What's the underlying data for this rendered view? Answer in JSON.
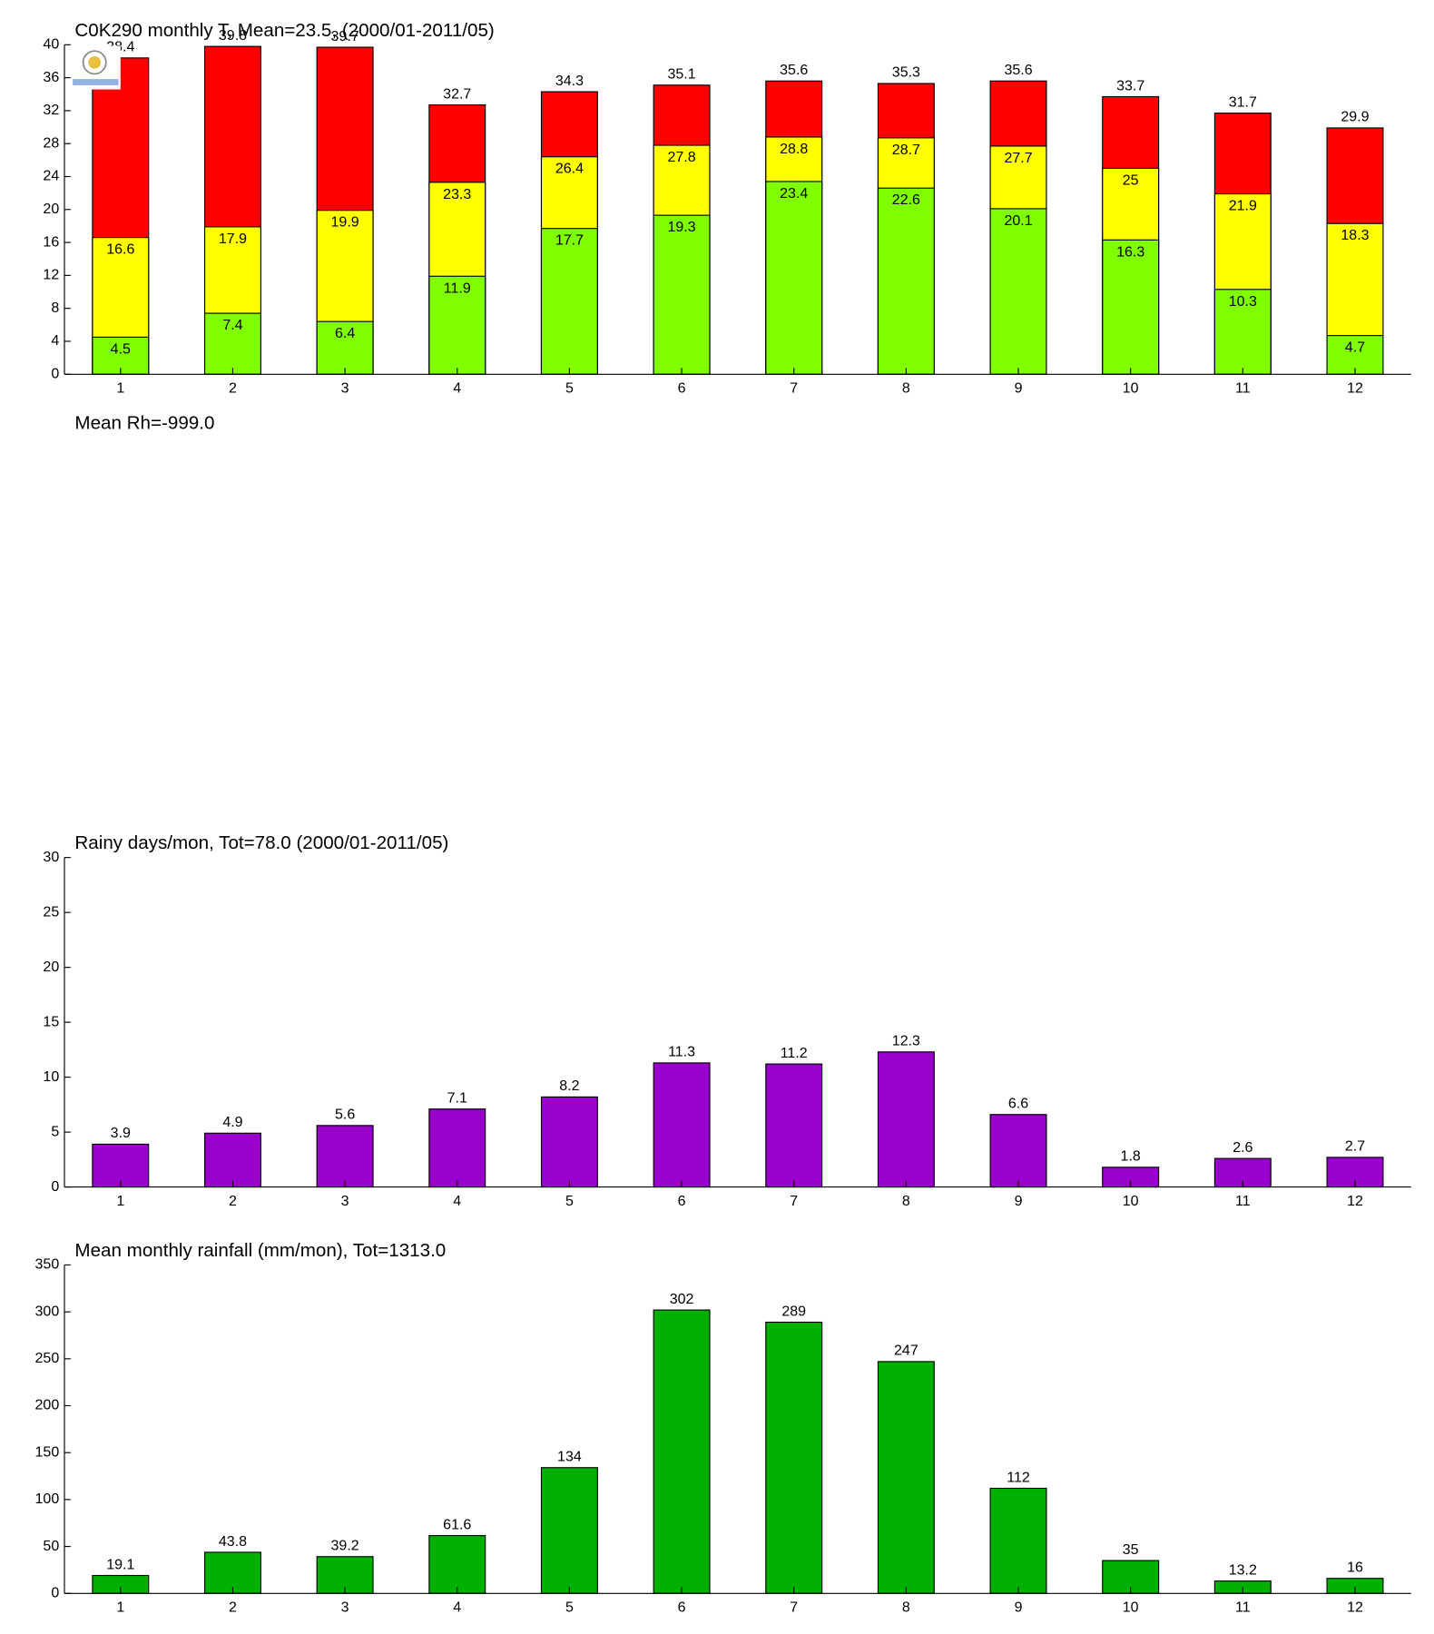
{
  "chart_data": [
    {
      "type": "bar",
      "overlay": true,
      "title": "C0K290 monthly T, Mean=23.5, (2000/01-2011/05)",
      "categories": [
        "1",
        "2",
        "3",
        "4",
        "5",
        "6",
        "7",
        "8",
        "9",
        "10",
        "11",
        "12"
      ],
      "series": [
        {
          "color": "#ff0000",
          "values": [
            38.4,
            39.8,
            39.7,
            32.7,
            34.3,
            35.1,
            35.6,
            35.3,
            35.6,
            33.7,
            31.7,
            29.9
          ]
        },
        {
          "color": "#ffff00",
          "values": [
            16.6,
            17.9,
            19.9,
            23.3,
            26.4,
            27.8,
            28.8,
            28.7,
            27.7,
            25,
            21.9,
            18.3
          ]
        },
        {
          "color": "#80ff00",
          "values": [
            4.5,
            7.4,
            6.4,
            11.9,
            17.7,
            19.3,
            23.4,
            22.6,
            20.1,
            16.3,
            10.3,
            4.7
          ]
        }
      ],
      "ylim": [
        0,
        40
      ],
      "yticks": [
        0,
        4,
        8,
        12,
        16,
        20,
        24,
        28,
        32,
        36,
        40
      ]
    },
    {
      "type": "blank",
      "title": "Mean Rh=-999.0"
    },
    {
      "type": "bar",
      "title": "Rainy days/mon, Tot=78.0 (2000/01-2011/05)",
      "categories": [
        "1",
        "2",
        "3",
        "4",
        "5",
        "6",
        "7",
        "8",
        "9",
        "10",
        "11",
        "12"
      ],
      "series": [
        {
          "color": "#9900cc",
          "values": [
            3.9,
            4.9,
            5.6,
            7.1,
            8.2,
            11.3,
            11.2,
            12.3,
            6.6,
            1.8,
            2.6,
            2.7
          ]
        }
      ],
      "ylim": [
        0,
        30
      ],
      "yticks": [
        0,
        5,
        10,
        15,
        20,
        25,
        30
      ]
    },
    {
      "type": "bar",
      "title": "Mean monthly rainfall (mm/mon), Tot=1313.0",
      "categories": [
        "1",
        "2",
        "3",
        "4",
        "5",
        "6",
        "7",
        "8",
        "9",
        "10",
        "11",
        "12"
      ],
      "series": [
        {
          "color": "#00b000",
          "values": [
            19.1,
            43.8,
            39.2,
            61.6,
            134,
            302,
            289,
            247,
            112,
            35,
            13.2,
            16
          ]
        }
      ],
      "ylim": [
        0,
        350
      ],
      "yticks": [
        0,
        50,
        100,
        150,
        200,
        250,
        300,
        350
      ]
    }
  ]
}
